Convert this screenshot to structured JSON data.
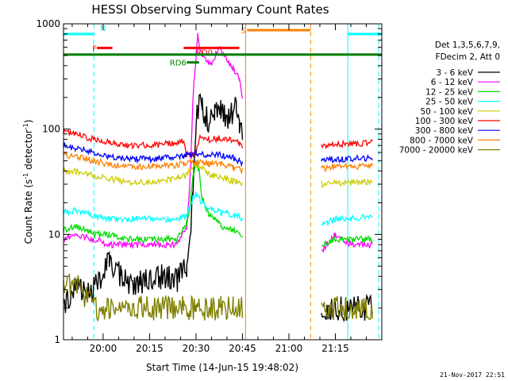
{
  "chart_data": {
    "type": "line",
    "title": "HESSI Observing Summary Count Rates",
    "xlabel": "Start Time (14-Jun-15 19:48:02)",
    "ylabel": "Count Rate (s",
    "ylabel_unit_sup": "-1",
    "ylabel_tail": " detector",
    "ylabel_tail_sup": "-1",
    "ylabel_close": ")",
    "yscale": "log",
    "ylim": [
      1,
      1000
    ],
    "xlim_minutes": [
      -12.8,
      90
    ],
    "x_ticks": [
      {
        "label": "20:00",
        "min": 0
      },
      {
        "label": "20:15",
        "min": 15
      },
      {
        "label": "20:30",
        "min": 30
      },
      {
        "label": "20:45",
        "min": 45
      },
      {
        "label": "21:00",
        "min": 60
      },
      {
        "label": "21:15",
        "min": 75
      }
    ],
    "y_ticks": [
      {
        "label": "1",
        "value": 1
      },
      {
        "label": "10",
        "value": 10
      },
      {
        "label": "100",
        "value": 100
      },
      {
        "label": "1000",
        "value": 1000
      }
    ],
    "legend_header": [
      "Det 1,3,5,6,7,9,",
      "FDecim 2, Att 0"
    ],
    "legend_position": "right",
    "timestamp": "21-Nov-2017 22:51",
    "series": [
      {
        "name": "3 - 6 keV",
        "color": "#000000",
        "points": [
          [
            -12.8,
            2
          ],
          [
            -9,
            3
          ],
          [
            -3,
            3
          ],
          [
            2,
            5.5
          ],
          [
            6,
            4
          ],
          [
            8,
            3.5
          ],
          [
            12,
            3.5
          ],
          [
            18,
            4
          ],
          [
            24,
            3.7
          ],
          [
            27,
            5
          ],
          [
            28,
            9
          ],
          [
            29,
            25
          ],
          [
            30,
            110
          ],
          [
            31,
            190
          ],
          [
            32,
            160
          ],
          [
            34,
            120
          ],
          [
            36,
            140
          ],
          [
            38,
            160
          ],
          [
            40,
            110
          ],
          [
            42,
            150
          ],
          [
            43,
            170
          ],
          [
            44,
            120
          ],
          [
            45,
            90
          ],
          [
            45.5,
            null
          ],
          [
            70,
            null
          ],
          [
            70.5,
            2
          ],
          [
            75,
            2
          ],
          [
            82,
            2
          ],
          [
            87,
            2
          ]
        ]
      },
      {
        "name": "6 - 12 keV",
        "color": "#ff00ff",
        "points": [
          [
            -12.8,
            9
          ],
          [
            -9,
            10
          ],
          [
            -3,
            9
          ],
          [
            2,
            8
          ],
          [
            8,
            8
          ],
          [
            16,
            8
          ],
          [
            24,
            8
          ],
          [
            27,
            12
          ],
          [
            28,
            30
          ],
          [
            29,
            200
          ],
          [
            30,
            500
          ],
          [
            30.5,
            780
          ],
          [
            31,
            650
          ],
          [
            32,
            500
          ],
          [
            33,
            450
          ],
          [
            35,
            400
          ],
          [
            37,
            560
          ],
          [
            38,
            570
          ],
          [
            40,
            450
          ],
          [
            42,
            380
          ],
          [
            44,
            300
          ],
          [
            45,
            200
          ],
          [
            45.5,
            null
          ],
          [
            70,
            null
          ],
          [
            70.5,
            7
          ],
          [
            75,
            10
          ],
          [
            80,
            8
          ],
          [
            87,
            8
          ]
        ]
      },
      {
        "name": "12 - 25 keV",
        "color": "#00dd00",
        "points": [
          [
            -12.8,
            11
          ],
          [
            -9,
            12
          ],
          [
            -3,
            10
          ],
          [
            2,
            10
          ],
          [
            8,
            9
          ],
          [
            16,
            9
          ],
          [
            24,
            9
          ],
          [
            27,
            13
          ],
          [
            28,
            18
          ],
          [
            29,
            35
          ],
          [
            30,
            50
          ],
          [
            31,
            40
          ],
          [
            32,
            22
          ],
          [
            34,
            16
          ],
          [
            36,
            14
          ],
          [
            38,
            12
          ],
          [
            40,
            11
          ],
          [
            42,
            11
          ],
          [
            44,
            10
          ],
          [
            45,
            9
          ],
          [
            45.5,
            null
          ],
          [
            70,
            null
          ],
          [
            70.5,
            8
          ],
          [
            75,
            9
          ],
          [
            87,
            9
          ]
        ]
      },
      {
        "name": "25 - 50 keV",
        "color": "#00ffff",
        "points": [
          [
            -12.8,
            16
          ],
          [
            -9,
            17
          ],
          [
            -3,
            15
          ],
          [
            2,
            14
          ],
          [
            8,
            14
          ],
          [
            16,
            14
          ],
          [
            24,
            14
          ],
          [
            27,
            15
          ],
          [
            28,
            18
          ],
          [
            29,
            22
          ],
          [
            30,
            24
          ],
          [
            32,
            20
          ],
          [
            34,
            18
          ],
          [
            36,
            17
          ],
          [
            38,
            16
          ],
          [
            40,
            16
          ],
          [
            42,
            15
          ],
          [
            44,
            15
          ],
          [
            45,
            14
          ],
          [
            45.5,
            null
          ],
          [
            70,
            null
          ],
          [
            70.5,
            12
          ],
          [
            75,
            14
          ],
          [
            80,
            14
          ],
          [
            87,
            15
          ]
        ]
      },
      {
        "name": "50 - 100 keV",
        "color": "#cccc00",
        "points": [
          [
            -12.8,
            40
          ],
          [
            -9,
            40
          ],
          [
            -3,
            36
          ],
          [
            2,
            34
          ],
          [
            8,
            31
          ],
          [
            16,
            31
          ],
          [
            24,
            34
          ],
          [
            27,
            37
          ],
          [
            28,
            40
          ],
          [
            29,
            44
          ],
          [
            30,
            46
          ],
          [
            32,
            42
          ],
          [
            34,
            38
          ],
          [
            36,
            36
          ],
          [
            38,
            35
          ],
          [
            40,
            34
          ],
          [
            42,
            32
          ],
          [
            44,
            31
          ],
          [
            45,
            30
          ],
          [
            45.5,
            null
          ],
          [
            70,
            null
          ],
          [
            70.5,
            30
          ],
          [
            75,
            31
          ],
          [
            80,
            31
          ],
          [
            87,
            32
          ]
        ]
      },
      {
        "name": "100 - 300 keV",
        "color": "#ff0000",
        "points": [
          [
            -12.8,
            95
          ],
          [
            -9,
            90
          ],
          [
            -3,
            80
          ],
          [
            2,
            75
          ],
          [
            8,
            70
          ],
          [
            16,
            70
          ],
          [
            22,
            73
          ],
          [
            26,
            75
          ],
          [
            27,
            58
          ],
          [
            30,
            58
          ],
          [
            31,
            84
          ],
          [
            34,
            80
          ],
          [
            38,
            82
          ],
          [
            40,
            80
          ],
          [
            42,
            78
          ],
          [
            44,
            75
          ],
          [
            45,
            70
          ],
          [
            45.5,
            null
          ],
          [
            70,
            null
          ],
          [
            70.5,
            70
          ],
          [
            75,
            72
          ],
          [
            80,
            72
          ],
          [
            87,
            74
          ]
        ]
      },
      {
        "name": "300 - 800 keV",
        "color": "#0000ff",
        "points": [
          [
            -12.8,
            70
          ],
          [
            -9,
            66
          ],
          [
            -3,
            60
          ],
          [
            2,
            55
          ],
          [
            8,
            52
          ],
          [
            16,
            52
          ],
          [
            22,
            54
          ],
          [
            26,
            56
          ],
          [
            28,
            58
          ],
          [
            30,
            59
          ],
          [
            32,
            58
          ],
          [
            34,
            57
          ],
          [
            38,
            57
          ],
          [
            40,
            55
          ],
          [
            42,
            53
          ],
          [
            44,
            50
          ],
          [
            45,
            48
          ],
          [
            45.5,
            null
          ],
          [
            70,
            null
          ],
          [
            70.5,
            50
          ],
          [
            75,
            52
          ],
          [
            80,
            52
          ],
          [
            87,
            53
          ]
        ]
      },
      {
        "name": "800 - 7000 keV",
        "color": "#ff8000",
        "points": [
          [
            -12.8,
            58
          ],
          [
            -9,
            55
          ],
          [
            -3,
            50
          ],
          [
            2,
            46
          ],
          [
            8,
            44
          ],
          [
            16,
            44
          ],
          [
            22,
            45
          ],
          [
            26,
            47
          ],
          [
            28,
            48
          ],
          [
            30,
            49
          ],
          [
            32,
            48
          ],
          [
            34,
            47
          ],
          [
            38,
            47
          ],
          [
            40,
            45
          ],
          [
            42,
            43
          ],
          [
            44,
            42
          ],
          [
            45,
            40
          ],
          [
            45.5,
            null
          ],
          [
            70,
            null
          ],
          [
            70.5,
            42
          ],
          [
            75,
            44
          ],
          [
            80,
            44
          ],
          [
            87,
            45
          ]
        ]
      },
      {
        "name": "7000 - 20000 keV",
        "color": "#808000",
        "points": [
          [
            -12.8,
            3
          ],
          [
            -9,
            3.5
          ],
          [
            -3,
            2
          ],
          [
            2,
            2
          ],
          [
            8,
            2
          ],
          [
            16,
            2
          ],
          [
            22,
            2
          ],
          [
            26,
            2
          ],
          [
            28,
            2
          ],
          [
            30,
            2
          ],
          [
            34,
            2
          ],
          [
            38,
            2
          ],
          [
            42,
            2
          ],
          [
            45,
            2
          ],
          [
            45.5,
            null
          ],
          [
            70,
            null
          ],
          [
            70.5,
            2
          ],
          [
            75,
            2
          ],
          [
            87,
            2
          ]
        ]
      }
    ],
    "bars": [
      {
        "label": "N",
        "color": "#00ffff",
        "y": 800,
        "segments": [
          [
            -12.8,
            -3
          ],
          [
            79,
            90
          ]
        ],
        "label_x_min": 0
      },
      {
        "label": "F",
        "color": "#ff0000",
        "y": 590,
        "segments": [
          [
            -2,
            3
          ]
        ],
        "label_x_min": -3.5,
        "label_side": "left"
      },
      {
        "label": "S",
        "color": "#ff8000",
        "y": 870,
        "segments": [
          [
            46.5,
            67
          ]
        ],
        "label_x_min": 44.5,
        "label_side": "left"
      },
      {
        "label": "RD0",
        "color": "#ff0000",
        "y": 590,
        "segments": [
          [
            26,
            44
          ]
        ],
        "label_x_min": 30,
        "label_side": "below"
      },
      {
        "label": "",
        "color": "#008000",
        "y": 510,
        "segments": [
          [
            -12.8,
            90
          ]
        ]
      },
      {
        "label": "RD6",
        "color": "#008000",
        "y": 430,
        "segments": [
          [
            27,
            31
          ]
        ],
        "label_x_min": 21.5,
        "label_side": "left"
      }
    ],
    "vlines": [
      {
        "min": -3,
        "color": "#00ffff",
        "style": "dashed"
      },
      {
        "min": 46,
        "color": "#ff8000",
        "style": "solid"
      },
      {
        "min": 67,
        "color": "#ff8000",
        "style": "dashed"
      },
      {
        "min": 79,
        "color": "#00ffff",
        "style": "solid"
      },
      {
        "min": 89,
        "color": "#00ffff",
        "style": "dashed"
      }
    ]
  }
}
